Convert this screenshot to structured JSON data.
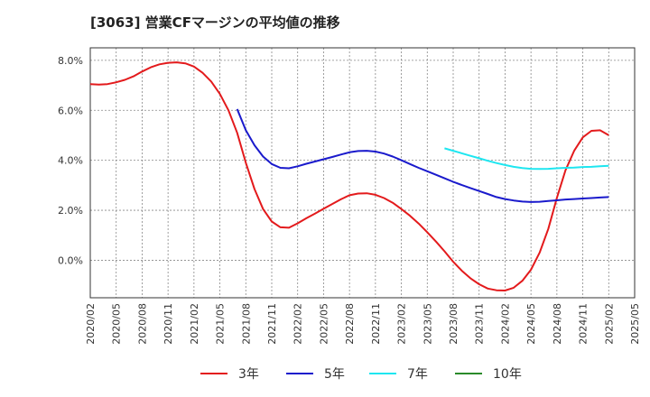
{
  "chart_data": {
    "type": "line",
    "title": "[3063]  営業CFマージンの平均値の推移",
    "xlabel": "",
    "ylabel": "",
    "ylim": [
      -1.5,
      8.5
    ],
    "grid": true,
    "legend_placement": "bottom",
    "y_ticks": [
      0.0,
      2.0,
      4.0,
      6.0,
      8.0
    ],
    "y_tick_labels": [
      "0.0%",
      "2.0%",
      "4.0%",
      "6.0%",
      "8.0%"
    ],
    "x_range": [
      "2020-02",
      "2025-05"
    ],
    "x_tick_labels": [
      "2020/02",
      "2020/05",
      "2020/08",
      "2020/11",
      "2021/02",
      "2021/05",
      "2021/08",
      "2021/11",
      "2022/02",
      "2022/05",
      "2022/08",
      "2022/11",
      "2023/02",
      "2023/05",
      "2023/08",
      "2023/11",
      "2024/02",
      "2024/05",
      "2024/08",
      "2024/11",
      "2025/02",
      "2025/05"
    ],
    "series": [
      {
        "name": "3年",
        "color": "#e31a1c",
        "points": [
          [
            "2020-02",
            7.05
          ],
          [
            "2020-03",
            7.03
          ],
          [
            "2020-04",
            7.05
          ],
          [
            "2020-05",
            7.12
          ],
          [
            "2020-06",
            7.22
          ],
          [
            "2020-07",
            7.36
          ],
          [
            "2020-08",
            7.55
          ],
          [
            "2020-09",
            7.72
          ],
          [
            "2020-10",
            7.84
          ],
          [
            "2020-11",
            7.9
          ],
          [
            "2020-12",
            7.92
          ],
          [
            "2021-01",
            7.88
          ],
          [
            "2021-02",
            7.75
          ],
          [
            "2021-03",
            7.5
          ],
          [
            "2021-04",
            7.15
          ],
          [
            "2021-05",
            6.65
          ],
          [
            "2021-06",
            6.0
          ],
          [
            "2021-07",
            5.1
          ],
          [
            "2021-08",
            3.9
          ],
          [
            "2021-09",
            2.85
          ],
          [
            "2021-10",
            2.05
          ],
          [
            "2021-11",
            1.55
          ],
          [
            "2021-12",
            1.32
          ],
          [
            "2022-01",
            1.3
          ],
          [
            "2022-02",
            1.48
          ],
          [
            "2022-03",
            1.68
          ],
          [
            "2022-04",
            1.87
          ],
          [
            "2022-05",
            2.06
          ],
          [
            "2022-06",
            2.25
          ],
          [
            "2022-07",
            2.44
          ],
          [
            "2022-08",
            2.6
          ],
          [
            "2022-09",
            2.67
          ],
          [
            "2022-10",
            2.68
          ],
          [
            "2022-11",
            2.62
          ],
          [
            "2022-12",
            2.49
          ],
          [
            "2023-01",
            2.3
          ],
          [
            "2023-02",
            2.05
          ],
          [
            "2023-03",
            1.78
          ],
          [
            "2023-04",
            1.47
          ],
          [
            "2023-05",
            1.12
          ],
          [
            "2023-06",
            0.75
          ],
          [
            "2023-07",
            0.36
          ],
          [
            "2023-08",
            -0.06
          ],
          [
            "2023-09",
            -0.42
          ],
          [
            "2023-10",
            -0.72
          ],
          [
            "2023-11",
            -0.96
          ],
          [
            "2023-12",
            -1.13
          ],
          [
            "2024-01",
            -1.2
          ],
          [
            "2024-02",
            -1.21
          ],
          [
            "2024-03",
            -1.1
          ],
          [
            "2024-04",
            -0.82
          ],
          [
            "2024-05",
            -0.38
          ],
          [
            "2024-06",
            0.3
          ],
          [
            "2024-07",
            1.25
          ],
          [
            "2024-08",
            2.5
          ],
          [
            "2024-09",
            3.6
          ],
          [
            "2024-10",
            4.38
          ],
          [
            "2024-11",
            4.92
          ],
          [
            "2024-12",
            5.18
          ],
          [
            "2025-01",
            5.2
          ],
          [
            "2025-02",
            5.0
          ]
        ]
      },
      {
        "name": "5年",
        "color": "#1a1acc",
        "points": [
          [
            "2021-07",
            6.05
          ],
          [
            "2021-08",
            5.2
          ],
          [
            "2021-09",
            4.6
          ],
          [
            "2021-10",
            4.15
          ],
          [
            "2021-11",
            3.85
          ],
          [
            "2021-12",
            3.7
          ],
          [
            "2022-01",
            3.68
          ],
          [
            "2022-02",
            3.76
          ],
          [
            "2022-03",
            3.86
          ],
          [
            "2022-04",
            3.95
          ],
          [
            "2022-05",
            4.04
          ],
          [
            "2022-06",
            4.13
          ],
          [
            "2022-07",
            4.23
          ],
          [
            "2022-08",
            4.32
          ],
          [
            "2022-09",
            4.37
          ],
          [
            "2022-10",
            4.38
          ],
          [
            "2022-11",
            4.35
          ],
          [
            "2022-12",
            4.27
          ],
          [
            "2023-01",
            4.15
          ],
          [
            "2023-02",
            4.0
          ],
          [
            "2023-03",
            3.85
          ],
          [
            "2023-04",
            3.7
          ],
          [
            "2023-05",
            3.56
          ],
          [
            "2023-06",
            3.42
          ],
          [
            "2023-07",
            3.28
          ],
          [
            "2023-08",
            3.14
          ],
          [
            "2023-09",
            3.01
          ],
          [
            "2023-10",
            2.89
          ],
          [
            "2023-11",
            2.77
          ],
          [
            "2023-12",
            2.65
          ],
          [
            "2024-01",
            2.53
          ],
          [
            "2024-02",
            2.45
          ],
          [
            "2024-03",
            2.39
          ],
          [
            "2024-04",
            2.35
          ],
          [
            "2024-05",
            2.33
          ],
          [
            "2024-06",
            2.34
          ],
          [
            "2024-07",
            2.37
          ],
          [
            "2024-08",
            2.4
          ],
          [
            "2024-09",
            2.43
          ],
          [
            "2024-10",
            2.45
          ],
          [
            "2024-11",
            2.47
          ],
          [
            "2024-12",
            2.49
          ],
          [
            "2025-01",
            2.51
          ],
          [
            "2025-02",
            2.53
          ]
        ]
      },
      {
        "name": "7年",
        "color": "#1ee6f0",
        "points": [
          [
            "2023-07",
            4.48
          ],
          [
            "2023-08",
            4.38
          ],
          [
            "2023-09",
            4.28
          ],
          [
            "2023-10",
            4.18
          ],
          [
            "2023-11",
            4.08
          ],
          [
            "2023-12",
            3.98
          ],
          [
            "2024-01",
            3.89
          ],
          [
            "2024-02",
            3.81
          ],
          [
            "2024-03",
            3.74
          ],
          [
            "2024-04",
            3.69
          ],
          [
            "2024-05",
            3.66
          ],
          [
            "2024-06",
            3.65
          ],
          [
            "2024-07",
            3.66
          ],
          [
            "2024-08",
            3.68
          ],
          [
            "2024-09",
            3.7
          ],
          [
            "2024-10",
            3.71
          ],
          [
            "2024-11",
            3.73
          ],
          [
            "2024-12",
            3.74
          ],
          [
            "2025-01",
            3.76
          ],
          [
            "2025-02",
            3.78
          ]
        ]
      },
      {
        "name": "10年",
        "color": "#2a8a2a",
        "points": []
      }
    ]
  }
}
